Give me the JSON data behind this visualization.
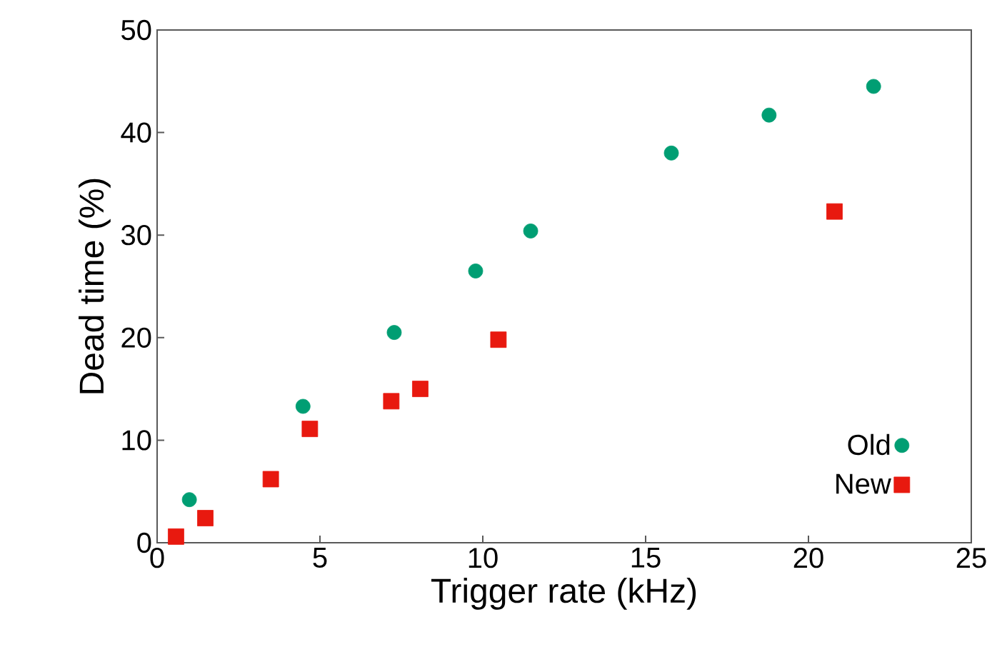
{
  "chart_data": {
    "type": "scatter",
    "xlabel": "Trigger rate (kHz)",
    "ylabel": "Dead time (%)",
    "xlim": [
      0,
      25
    ],
    "ylim": [
      0,
      50
    ],
    "xticks": [
      0,
      5,
      10,
      15,
      20,
      25
    ],
    "yticks": [
      0,
      10,
      20,
      30,
      40,
      50
    ],
    "grid": false,
    "legend": "bottom right",
    "series": [
      {
        "name": "Old",
        "color": "#009e73",
        "marker": "circle",
        "x": [
          0.99,
          4.48,
          7.28,
          9.78,
          11.47,
          15.79,
          18.79,
          22.0
        ],
        "values": [
          4.2,
          13.3,
          20.5,
          26.5,
          30.4,
          38.0,
          41.7,
          44.5
        ]
      },
      {
        "name": "New",
        "color": "#e8190f",
        "marker": "square",
        "x": [
          0.58,
          1.48,
          3.49,
          4.69,
          7.19,
          8.08,
          10.48,
          20.8
        ],
        "values": [
          0.6,
          2.4,
          6.2,
          11.1,
          13.8,
          15.0,
          19.8,
          32.3
        ]
      }
    ]
  }
}
